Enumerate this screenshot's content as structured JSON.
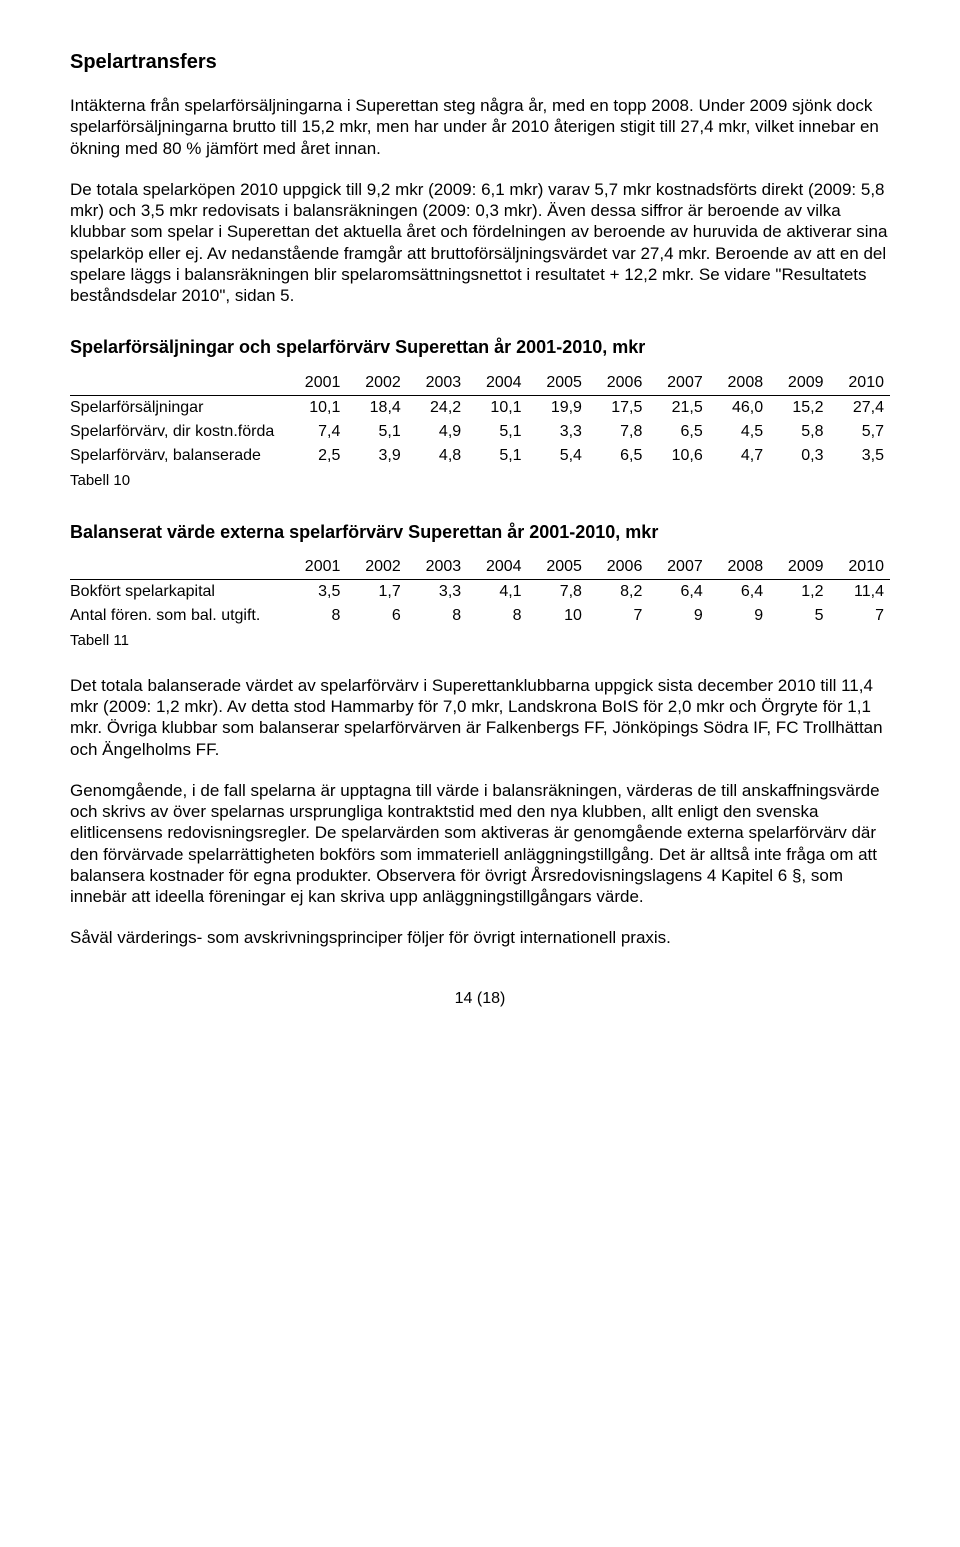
{
  "title": "Spelartransfers",
  "para1": "Intäkterna från spelarförsäljningarna i Superettan steg några år, med en topp 2008. Under 2009 sjönk dock spelarförsäljningarna brutto till 15,2 mkr, men har under år 2010 återigen stigit till 27,4 mkr, vilket innebar en ökning med 80 % jämfört med året innan.",
  "para2": "De totala spelarköpen 2010 uppgick till 9,2 mkr (2009: 6,1 mkr) varav 5,7 mkr kostnadsförts direkt (2009: 5,8 mkr) och 3,5 mkr redovisats i balansräkningen (2009: 0,3 mkr). Även dessa siffror är beroende av vilka klubbar som spelar i Superettan det aktuella året och fördelningen av beroende av huruvida de aktiverar sina spelarköp eller ej. Av nedanstående framgår att bruttoförsäljningsvärdet var 27,4 mkr. Beroende av att en del spelare läggs i balansräkningen blir spelaromsättningsnettot i resultatet + 12,2 mkr. Se vidare \"Resultatets beståndsdelar 2010\", sidan 5.",
  "table1": {
    "title": "Spelarförsäljningar och spelarförvärv Superettan år 2001-2010, mkr",
    "columns": [
      "2001",
      "2002",
      "2003",
      "2004",
      "2005",
      "2006",
      "2007",
      "2008",
      "2009",
      "2010"
    ],
    "rows": [
      {
        "label": "Spelarförsäljningar",
        "cells": [
          "10,1",
          "18,4",
          "24,2",
          "10,1",
          "19,9",
          "17,5",
          "21,5",
          "46,0",
          "15,2",
          "27,4"
        ]
      },
      {
        "label": "Spelarförvärv, dir kostn.förda",
        "cells": [
          "7,4",
          "5,1",
          "4,9",
          "5,1",
          "3,3",
          "7,8",
          "6,5",
          "4,5",
          "5,8",
          "5,7"
        ]
      },
      {
        "label": "Spelarförvärv, balanserade",
        "cells": [
          "2,5",
          "3,9",
          "4,8",
          "5,1",
          "5,4",
          "6,5",
          "10,6",
          "4,7",
          "0,3",
          "3,5"
        ]
      }
    ],
    "caption": "Tabell 10"
  },
  "table2": {
    "title": "Balanserat värde externa spelarförvärv Superettan år 2001-2010, mkr",
    "columns": [
      "2001",
      "2002",
      "2003",
      "2004",
      "2005",
      "2006",
      "2007",
      "2008",
      "2009",
      "2010"
    ],
    "rows": [
      {
        "label": "Bokfört spelarkapital",
        "cells": [
          "3,5",
          "1,7",
          "3,3",
          "4,1",
          "7,8",
          "8,2",
          "6,4",
          "6,4",
          "1,2",
          "11,4"
        ]
      },
      {
        "label": "Antal fören. som bal. utgift.",
        "cells": [
          "8",
          "6",
          "8",
          "8",
          "10",
          "7",
          "9",
          "9",
          "5",
          "7"
        ]
      }
    ],
    "caption": "Tabell 11"
  },
  "para3": "Det totala balanserade värdet av spelarförvärv i Superettanklubbarna uppgick sista december 2010 till 11,4 mkr (2009: 1,2 mkr). Av detta stod Hammarby för 7,0 mkr, Landskrona BoIS för 2,0 mkr och Örgryte för 1,1 mkr. Övriga klubbar som balanserar spelarförvärven är Falkenbergs FF, Jönköpings Södra IF, FC Trollhättan och Ängelholms FF.",
  "para4": "Genomgående, i de fall spelarna är upptagna till värde i balansräkningen, värderas de till anskaffningsvärde och skrivs av över spelarnas ursprungliga kontraktstid med den nya klubben, allt enligt den svenska elitlicensens redovisningsregler. De spelarvärden som aktiveras är genomgående externa spelarförvärv där den förvärvade spelarrättigheten bokförs som immateriell anläggningstillgång. Det är alltså inte fråga om att balansera kostnader för egna produkter. Observera för övrigt Årsredovisningslagens 4 Kapitel 6 §, som innebär att ideella föreningar ej kan skriva upp anläggningstillgångars värde.",
  "para5": "Såväl värderings- som avskrivningsprinciper följer för övrigt internationell praxis.",
  "footer": "14 (18)"
}
